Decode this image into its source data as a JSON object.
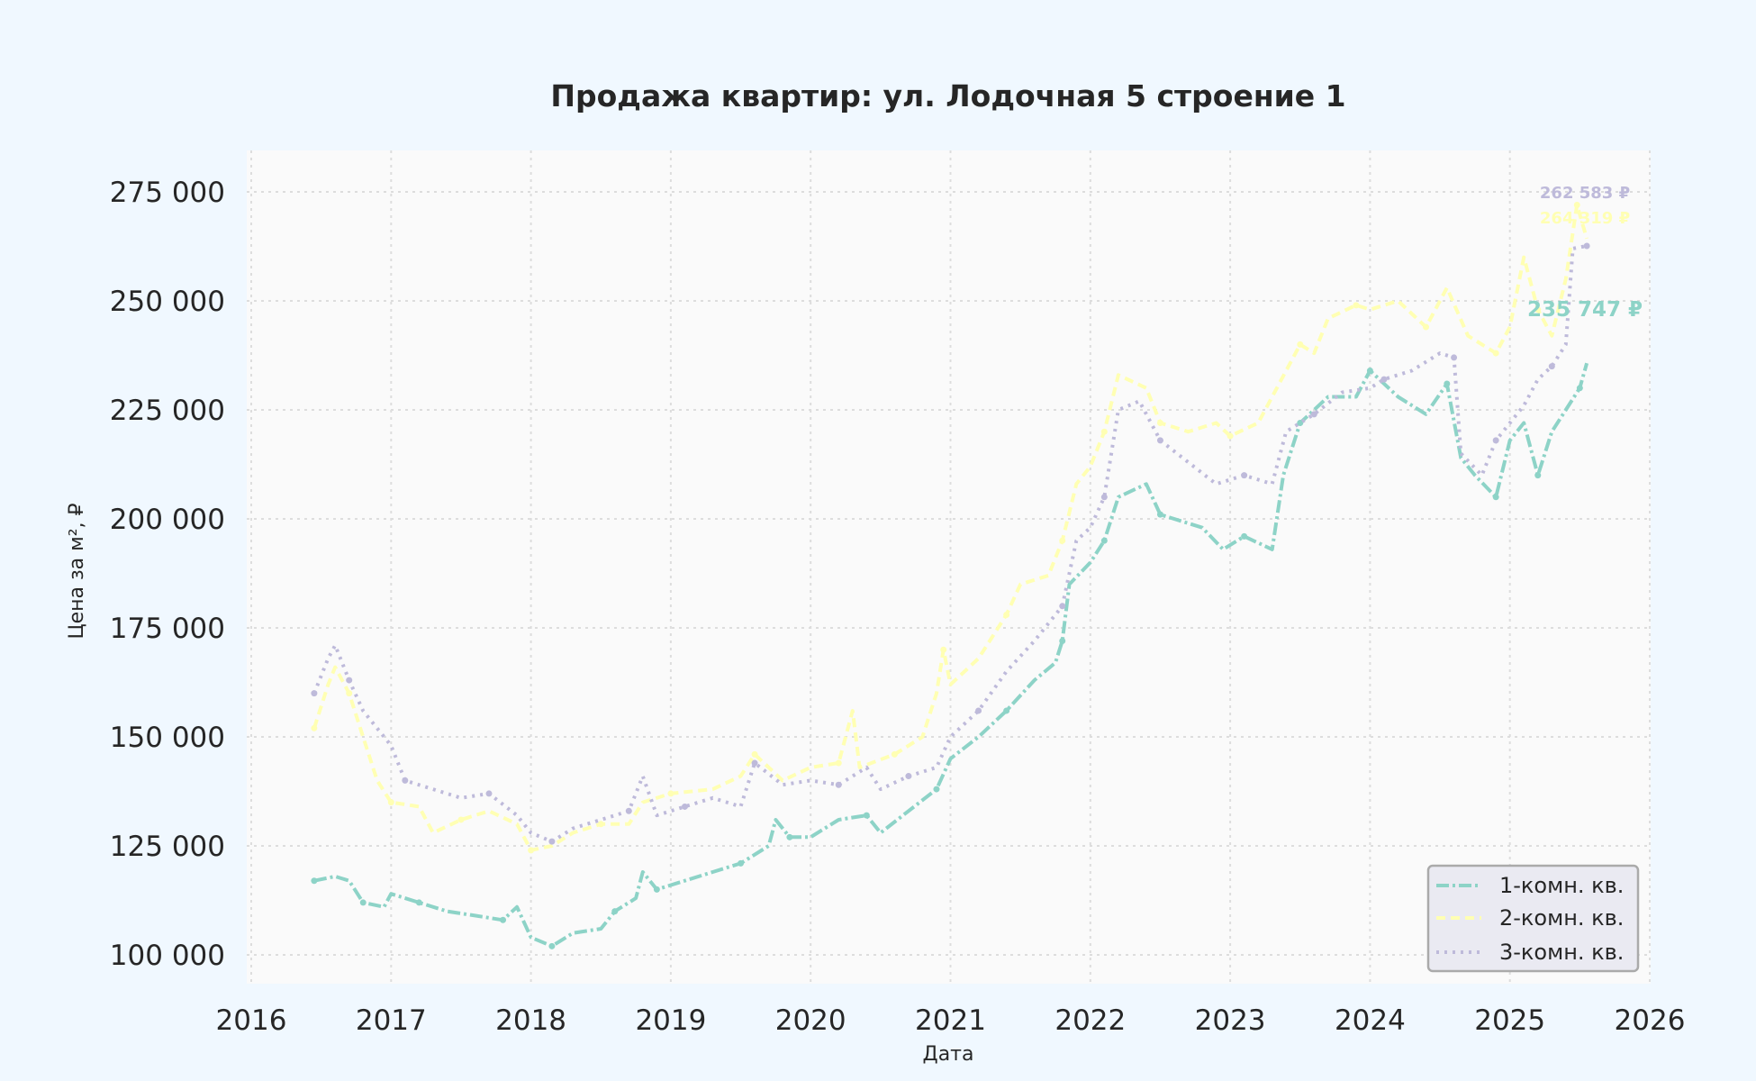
{
  "chart_data": {
    "type": "line",
    "title": "Продажа квартир: ул. Лодочная 5 строение 1",
    "xlabel": "Дата",
    "ylabel": "Цена за м², ₽",
    "xlim": [
      2016,
      2026
    ],
    "ylim": [
      95000,
      280000
    ],
    "x_ticks": [
      "2016",
      "2017",
      "2018",
      "2019",
      "2020",
      "2021",
      "2022",
      "2023",
      "2024",
      "2025",
      "2026"
    ],
    "y_ticks": [
      100000,
      125000,
      150000,
      175000,
      200000,
      225000,
      250000,
      275000
    ],
    "y_tick_labels": [
      "100 000",
      "125 000",
      "150 000",
      "175 000",
      "200 000",
      "225 000",
      "250 000",
      "275 000"
    ],
    "grid": true,
    "legend_position": "bottom-right",
    "value_unit": "thousand ₽ per m²",
    "series": [
      {
        "name": "1-комн. кв.",
        "color": "#8dd3c7",
        "end_label": "235 747 ₽",
        "points": [
          [
            2016.45,
            117
          ],
          [
            2016.6,
            118
          ],
          [
            2016.7,
            117
          ],
          [
            2016.8,
            112
          ],
          [
            2016.95,
            111
          ],
          [
            2017.0,
            114
          ],
          [
            2017.2,
            112
          ],
          [
            2017.4,
            110
          ],
          [
            2017.6,
            109
          ],
          [
            2017.8,
            108
          ],
          [
            2017.9,
            111
          ],
          [
            2018.0,
            104
          ],
          [
            2018.15,
            102
          ],
          [
            2018.3,
            105
          ],
          [
            2018.5,
            106
          ],
          [
            2018.6,
            110
          ],
          [
            2018.75,
            113
          ],
          [
            2018.8,
            119
          ],
          [
            2018.9,
            115
          ],
          [
            2019.1,
            117
          ],
          [
            2019.3,
            119
          ],
          [
            2019.5,
            121
          ],
          [
            2019.7,
            125
          ],
          [
            2019.75,
            131
          ],
          [
            2019.85,
            127
          ],
          [
            2020.0,
            127
          ],
          [
            2020.2,
            131
          ],
          [
            2020.4,
            132
          ],
          [
            2020.5,
            128
          ],
          [
            2020.7,
            133
          ],
          [
            2020.9,
            138
          ],
          [
            2021.0,
            145
          ],
          [
            2021.2,
            150
          ],
          [
            2021.4,
            156
          ],
          [
            2021.6,
            163
          ],
          [
            2021.75,
            167
          ],
          [
            2021.8,
            172
          ],
          [
            2021.85,
            185
          ],
          [
            2022.0,
            190
          ],
          [
            2022.1,
            195
          ],
          [
            2022.2,
            205
          ],
          [
            2022.4,
            208
          ],
          [
            2022.5,
            201
          ],
          [
            2022.8,
            198
          ],
          [
            2022.95,
            193
          ],
          [
            2023.1,
            196
          ],
          [
            2023.3,
            193
          ],
          [
            2023.38,
            210
          ],
          [
            2023.5,
            222
          ],
          [
            2023.7,
            228
          ],
          [
            2023.9,
            228
          ],
          [
            2024.0,
            234
          ],
          [
            2024.2,
            228
          ],
          [
            2024.4,
            224
          ],
          [
            2024.55,
            231
          ],
          [
            2024.65,
            214
          ],
          [
            2024.75,
            210
          ],
          [
            2024.9,
            205
          ],
          [
            2025.0,
            218
          ],
          [
            2025.1,
            222
          ],
          [
            2025.2,
            210
          ],
          [
            2025.3,
            220
          ],
          [
            2025.4,
            225
          ],
          [
            2025.5,
            230
          ],
          [
            2025.55,
            235.7
          ]
        ]
      },
      {
        "name": "2-комн. кв.",
        "color": "#ffffb3",
        "end_label": "264 319 ₽",
        "points": [
          [
            2016.45,
            152
          ],
          [
            2016.55,
            162
          ],
          [
            2016.6,
            166
          ],
          [
            2016.7,
            160
          ],
          [
            2016.8,
            150
          ],
          [
            2016.9,
            140
          ],
          [
            2017.0,
            135
          ],
          [
            2017.2,
            134
          ],
          [
            2017.3,
            128
          ],
          [
            2017.5,
            131
          ],
          [
            2017.7,
            133
          ],
          [
            2017.9,
            130
          ],
          [
            2018.0,
            124
          ],
          [
            2018.15,
            125
          ],
          [
            2018.3,
            128
          ],
          [
            2018.5,
            130
          ],
          [
            2018.7,
            130
          ],
          [
            2018.8,
            135
          ],
          [
            2019.0,
            137
          ],
          [
            2019.3,
            138
          ],
          [
            2019.5,
            141
          ],
          [
            2019.6,
            146
          ],
          [
            2019.8,
            140
          ],
          [
            2020.0,
            143
          ],
          [
            2020.2,
            144
          ],
          [
            2020.3,
            156
          ],
          [
            2020.35,
            143
          ],
          [
            2020.6,
            146
          ],
          [
            2020.8,
            150
          ],
          [
            2020.9,
            160
          ],
          [
            2020.95,
            170
          ],
          [
            2021.0,
            162
          ],
          [
            2021.2,
            168
          ],
          [
            2021.4,
            178
          ],
          [
            2021.5,
            185
          ],
          [
            2021.7,
            187
          ],
          [
            2021.8,
            195
          ],
          [
            2021.9,
            208
          ],
          [
            2022.0,
            212
          ],
          [
            2022.1,
            220
          ],
          [
            2022.2,
            233
          ],
          [
            2022.4,
            230
          ],
          [
            2022.5,
            222
          ],
          [
            2022.7,
            220
          ],
          [
            2022.9,
            222
          ],
          [
            2023.0,
            219
          ],
          [
            2023.2,
            222
          ],
          [
            2023.3,
            228
          ],
          [
            2023.5,
            240
          ],
          [
            2023.6,
            238
          ],
          [
            2023.7,
            246
          ],
          [
            2023.9,
            249
          ],
          [
            2024.0,
            248
          ],
          [
            2024.2,
            250
          ],
          [
            2024.4,
            244
          ],
          [
            2024.55,
            253
          ],
          [
            2024.7,
            242
          ],
          [
            2024.9,
            238
          ],
          [
            2025.0,
            244
          ],
          [
            2025.1,
            260
          ],
          [
            2025.2,
            248
          ],
          [
            2025.3,
            242
          ],
          [
            2025.4,
            255
          ],
          [
            2025.48,
            272
          ],
          [
            2025.55,
            264.3
          ]
        ]
      },
      {
        "name": "3-комн. кв.",
        "color": "#bebada",
        "end_label": "262 583 ₽",
        "points": [
          [
            2016.45,
            160
          ],
          [
            2016.55,
            168
          ],
          [
            2016.6,
            171
          ],
          [
            2016.7,
            163
          ],
          [
            2016.8,
            156
          ],
          [
            2017.0,
            148
          ],
          [
            2017.1,
            140
          ],
          [
            2017.3,
            138
          ],
          [
            2017.5,
            136
          ],
          [
            2017.7,
            137
          ],
          [
            2017.9,
            132
          ],
          [
            2018.0,
            128
          ],
          [
            2018.15,
            126
          ],
          [
            2018.3,
            129
          ],
          [
            2018.5,
            131
          ],
          [
            2018.7,
            133
          ],
          [
            2018.8,
            141
          ],
          [
            2018.9,
            132
          ],
          [
            2019.1,
            134
          ],
          [
            2019.3,
            136
          ],
          [
            2019.5,
            134
          ],
          [
            2019.6,
            144
          ],
          [
            2019.8,
            139
          ],
          [
            2020.0,
            140
          ],
          [
            2020.2,
            139
          ],
          [
            2020.4,
            143
          ],
          [
            2020.5,
            138
          ],
          [
            2020.7,
            141
          ],
          [
            2020.9,
            143
          ],
          [
            2021.0,
            150
          ],
          [
            2021.2,
            156
          ],
          [
            2021.4,
            165
          ],
          [
            2021.6,
            172
          ],
          [
            2021.8,
            180
          ],
          [
            2021.9,
            195
          ],
          [
            2022.0,
            198
          ],
          [
            2022.1,
            205
          ],
          [
            2022.2,
            225
          ],
          [
            2022.35,
            227
          ],
          [
            2022.5,
            218
          ],
          [
            2022.7,
            213
          ],
          [
            2022.9,
            208
          ],
          [
            2023.1,
            210
          ],
          [
            2023.3,
            208
          ],
          [
            2023.4,
            220
          ],
          [
            2023.6,
            224
          ],
          [
            2023.8,
            229
          ],
          [
            2024.0,
            230
          ],
          [
            2024.1,
            232
          ],
          [
            2024.3,
            234
          ],
          [
            2024.5,
            238
          ],
          [
            2024.6,
            237
          ],
          [
            2024.65,
            215
          ],
          [
            2024.8,
            210
          ],
          [
            2024.9,
            218
          ],
          [
            2025.1,
            226
          ],
          [
            2025.2,
            232
          ],
          [
            2025.3,
            235
          ],
          [
            2025.4,
            240
          ],
          [
            2025.45,
            262
          ],
          [
            2025.55,
            262.6
          ]
        ]
      }
    ]
  }
}
